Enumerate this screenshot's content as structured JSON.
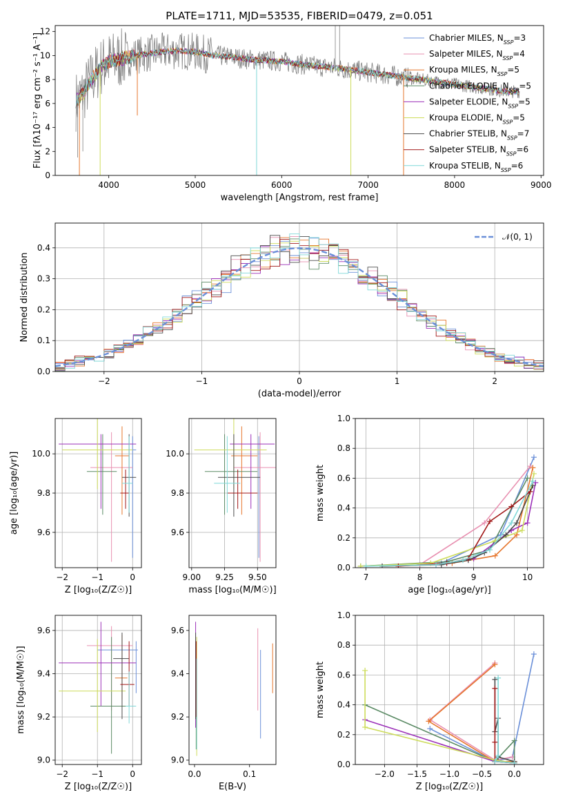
{
  "title": "PLATE=1711, MJD=53535, FIBERID=0479, z=0.051",
  "model_colors": [
    "#6a8fd8",
    "#e88fb0",
    "#e6762c",
    "#5a8a64",
    "#9b2fb8",
    "#cddc5a",
    "#4a4a4a",
    "#a01515",
    "#7fd8d8"
  ],
  "legend_labels": [
    {
      "base": "Chabrier MILES, N",
      "sub": "SSP",
      "tail": "=3"
    },
    {
      "base": "Salpeter MILES, N",
      "sub": "SSP",
      "tail": "=4"
    },
    {
      "base": "Kroupa MILES, N",
      "sub": "SSP",
      "tail": "=5"
    },
    {
      "base": "Chabrier ELODIE, N",
      "sub": "SSP",
      "tail": "=5"
    },
    {
      "base": "Salpeter ELODIE, N",
      "sub": "SSP",
      "tail": "=5"
    },
    {
      "base": "Kroupa ELODIE, N",
      "sub": "SSP",
      "tail": "=5"
    },
    {
      "base": "Chabrier STELIB, N",
      "sub": "SSP",
      "tail": "=7"
    },
    {
      "base": "Salpeter STELIB, N",
      "sub": "SSP",
      "tail": "=6"
    },
    {
      "base": "Kroupa STELIB, N",
      "sub": "SSP",
      "tail": "=6"
    }
  ],
  "chart_data": [
    {
      "id": "spectrum",
      "type": "line",
      "xlabel": "wavelength [Angstrom, rest frame]",
      "ylabel": "Flux [fλ10⁻¹⁷ erg cm⁻² s⁻¹ A⁻¹]",
      "xlim": [
        3380,
        9030
      ],
      "ylim": [
        0,
        12.5
      ],
      "xticks": [
        4000,
        5000,
        6000,
        7000,
        8000,
        9000
      ],
      "yticks": [
        0,
        2,
        4,
        6,
        8,
        10,
        12
      ],
      "continuum": [
        [
          3620,
          6.2
        ],
        [
          3700,
          6.8
        ],
        [
          3800,
          8.0
        ],
        [
          3900,
          9.0
        ],
        [
          4000,
          9.5
        ],
        [
          4200,
          9.8
        ],
        [
          4400,
          10.1
        ],
        [
          4600,
          10.3
        ],
        [
          4800,
          10.4
        ],
        [
          5000,
          10.3
        ],
        [
          5200,
          10.0
        ],
        [
          5400,
          9.9
        ],
        [
          5600,
          9.7
        ],
        [
          5800,
          9.6
        ],
        [
          6000,
          9.5
        ],
        [
          6200,
          9.3
        ],
        [
          6400,
          9.1
        ],
        [
          6600,
          9.0
        ],
        [
          6800,
          8.8
        ],
        [
          7000,
          8.6
        ],
        [
          7200,
          8.4
        ],
        [
          7400,
          8.2
        ],
        [
          7600,
          8.0
        ],
        [
          7800,
          7.8
        ],
        [
          8000,
          7.6
        ],
        [
          8200,
          7.4
        ],
        [
          8400,
          7.2
        ],
        [
          8600,
          7.0
        ],
        [
          8750,
          7.0
        ]
      ],
      "grid": false,
      "legend_loc": "upper right"
    },
    {
      "id": "residuals",
      "type": "step",
      "xlabel": "(data-model)/error",
      "ylabel": "Normed distribution",
      "xlim": [
        -2.5,
        2.5
      ],
      "ylim": [
        0,
        0.48
      ],
      "xticks": [
        -2,
        -1,
        0,
        1,
        2
      ],
      "yticks": [
        0.0,
        0.1,
        0.2,
        0.3,
        0.4
      ],
      "bin_width": 0.1,
      "reference_curve": "N(0,1)",
      "legend_label": "𝒩(0, 1)",
      "grid": true,
      "legend_loc": "upper right"
    },
    {
      "id": "age_vs_Z",
      "type": "scatter",
      "xlabel": "Z [log₁₀(Z/Z☉)]",
      "ylabel": "age  [log₁₀(age/yr)]",
      "xlim": [
        -2.2,
        0.25
      ],
      "ylim": [
        9.42,
        10.18
      ],
      "xticks": [
        -2,
        -1,
        0
      ],
      "yticks": [
        9.6,
        9.8,
        10.0
      ],
      "points": [
        {
          "x": 0.0,
          "y": 10.02,
          "xerr": [
            0.2,
            0.1
          ],
          "yerr": [
            0.55,
            0.07
          ]
        },
        {
          "x": -0.6,
          "y": 9.93,
          "xerr": [
            0.6,
            0.6
          ],
          "yerr": [
            0.48,
            0.18
          ]
        },
        {
          "x": -0.3,
          "y": 9.99,
          "xerr": [
            0.2,
            0.2
          ],
          "yerr": [
            0.3,
            0.15
          ]
        },
        {
          "x": -0.85,
          "y": 9.91,
          "xerr": [
            0.45,
            0.4
          ],
          "yerr": [
            0.22,
            0.19
          ]
        },
        {
          "x": -0.9,
          "y": 10.05,
          "xerr": [
            1.2,
            1.0
          ],
          "yerr": [
            0.33,
            0.05
          ]
        },
        {
          "x": -1.0,
          "y": 10.02,
          "xerr": [
            1.0,
            1.0
          ],
          "yerr": [
            0.2,
            0.16
          ]
        },
        {
          "x": -0.1,
          "y": 9.88,
          "xerr": [
            0.2,
            0.2
          ],
          "yerr": [
            0.2,
            0.22
          ]
        },
        {
          "x": -0.2,
          "y": 9.8,
          "xerr": [
            0.15,
            0.1
          ],
          "yerr": [
            0.08,
            0.12
          ]
        },
        {
          "x": -0.1,
          "y": 9.85,
          "xerr": [
            0.2,
            0.1
          ],
          "yerr": [
            0.15,
            0.24
          ]
        }
      ],
      "grid": true
    },
    {
      "id": "age_vs_mass",
      "type": "scatter",
      "xlabel": "mass [log₁₀(M/M☉)]",
      "ylabel": "",
      "xlim": [
        8.98,
        9.64
      ],
      "ylim": [
        9.42,
        10.18
      ],
      "xticks": [
        9.0,
        9.25,
        9.5
      ],
      "yticks": [
        9.6,
        9.8,
        10.0
      ],
      "points": [
        {
          "x": 9.51,
          "y": 10.02,
          "xerr": [
            0.2,
            0.04
          ],
          "yerr": [
            0.55,
            0.07
          ]
        },
        {
          "x": 9.52,
          "y": 9.93,
          "xerr": [
            0.2,
            0.12
          ],
          "yerr": [
            0.48,
            0.18
          ]
        },
        {
          "x": 9.38,
          "y": 9.99,
          "xerr": [
            0.08,
            0.12
          ],
          "yerr": [
            0.3,
            0.15
          ]
        },
        {
          "x": 9.25,
          "y": 9.91,
          "xerr": [
            0.15,
            0.25
          ],
          "yerr": [
            0.22,
            0.19
          ]
        },
        {
          "x": 9.45,
          "y": 10.05,
          "xerr": [
            0.16,
            0.18
          ],
          "yerr": [
            0.33,
            0.05
          ]
        },
        {
          "x": 9.32,
          "y": 10.02,
          "xerr": [
            0.3,
            0.25
          ],
          "yerr": [
            0.2,
            0.16
          ]
        },
        {
          "x": 9.32,
          "y": 9.88,
          "xerr": [
            0.12,
            0.2
          ],
          "yerr": [
            0.2,
            0.22
          ]
        },
        {
          "x": 9.35,
          "y": 9.8,
          "xerr": [
            0.08,
            0.15
          ],
          "yerr": [
            0.08,
            0.12
          ]
        },
        {
          "x": 9.27,
          "y": 9.85,
          "xerr": [
            0.1,
            0.1
          ],
          "yerr": [
            0.15,
            0.24
          ]
        }
      ],
      "grid": true
    },
    {
      "id": "weight_vs_age",
      "type": "line",
      "xlabel": "age  [log₁₀(age/yr)]",
      "ylabel": "mass weight",
      "xlim": [
        6.8,
        10.3
      ],
      "ylim": [
        0,
        1
      ],
      "xticks": [
        7,
        8,
        9,
        10
      ],
      "yticks": [
        0.0,
        0.2,
        0.4,
        0.6,
        0.8,
        1.0
      ],
      "series": [
        {
          "x": [
            8.4,
            9.5,
            10.12
          ],
          "y": [
            0.03,
            0.22,
            0.74
          ]
        },
        {
          "x": [
            8.0,
            9.2,
            10.05
          ],
          "y": [
            0.02,
            0.3,
            0.68
          ]
        },
        {
          "x": [
            8.6,
            9.4,
            9.8,
            10.1
          ],
          "y": [
            0.03,
            0.08,
            0.22,
            0.67
          ]
        },
        {
          "x": [
            6.9,
            8.5,
            9.3,
            10.0
          ],
          "y": [
            0.01,
            0.04,
            0.12,
            0.6
          ]
        },
        {
          "x": [
            8.3,
            9.0,
            9.7,
            10.0,
            10.15
          ],
          "y": [
            0.02,
            0.06,
            0.25,
            0.3,
            0.57
          ]
        },
        {
          "x": [
            6.9,
            8.2,
            9.4,
            9.9,
            10.12
          ],
          "y": [
            0.01,
            0.03,
            0.18,
            0.25,
            0.63
          ]
        },
        {
          "x": [
            7.3,
            8.4,
            8.9,
            9.2,
            9.6,
            9.8,
            10.1
          ],
          "y": [
            0.01,
            0.02,
            0.05,
            0.1,
            0.22,
            0.3,
            0.55
          ]
        },
        {
          "x": [
            7.6,
            8.5,
            8.9,
            9.3,
            9.7,
            10.05
          ],
          "y": [
            0.01,
            0.03,
            0.06,
            0.31,
            0.41,
            0.51
          ]
        },
        {
          "x": [
            7.0,
            8.3,
            8.8,
            9.3,
            9.7,
            10.1
          ],
          "y": [
            0.01,
            0.02,
            0.05,
            0.12,
            0.3,
            0.58
          ]
        }
      ],
      "grid": true
    },
    {
      "id": "mass_vs_Z",
      "type": "scatter",
      "xlabel": "Z [log₁₀(Z/Z☉)]",
      "ylabel": "mass [log₁₀(M/M☉)]",
      "xlim": [
        -2.2,
        0.25
      ],
      "ylim": [
        8.98,
        9.67
      ],
      "xticks": [
        -2,
        -1,
        0
      ],
      "yticks": [
        9.0,
        9.2,
        9.4,
        9.6
      ],
      "points": [
        {
          "x": 0.1,
          "y": 9.51,
          "xerr": [
            1.1,
            0.05
          ],
          "yerr": [
            0.2,
            0.04
          ]
        },
        {
          "x": -0.6,
          "y": 9.53,
          "xerr": [
            0.7,
            0.6
          ],
          "yerr": [
            0.3,
            0.09
          ]
        },
        {
          "x": -0.3,
          "y": 9.38,
          "xerr": [
            0.2,
            0.15
          ],
          "yerr": [
            0.1,
            0.2
          ]
        },
        {
          "x": -0.6,
          "y": 9.25,
          "xerr": [
            0.6,
            0.5
          ],
          "yerr": [
            0.22,
            0.32
          ]
        },
        {
          "x": -0.9,
          "y": 9.45,
          "xerr": [
            1.2,
            1.0
          ],
          "yerr": [
            0.2,
            0.19
          ]
        },
        {
          "x": -1.0,
          "y": 9.32,
          "xerr": [
            1.1,
            0.8
          ],
          "yerr": [
            0.19,
            0.24
          ]
        },
        {
          "x": -0.3,
          "y": 9.47,
          "xerr": [
            0.25,
            0.2
          ],
          "yerr": [
            0.28,
            0.12
          ]
        },
        {
          "x": -0.1,
          "y": 9.35,
          "xerr": [
            0.25,
            0.15
          ],
          "yerr": [
            0.1,
            0.2
          ]
        },
        {
          "x": -0.1,
          "y": 9.25,
          "xerr": [
            0.1,
            0.2
          ],
          "yerr": [
            0.08,
            0.16
          ]
        }
      ],
      "grid": true
    },
    {
      "id": "mass_vs_ebv",
      "type": "scatter",
      "xlabel": "E(B-V)",
      "ylabel": "",
      "xlim": [
        -0.01,
        0.148
      ],
      "ylim": [
        8.98,
        9.67
      ],
      "xticks": [
        0.0,
        0.1
      ],
      "yticks": [
        9.0,
        9.2,
        9.4,
        9.6
      ],
      "points": [
        {
          "x": 0.12,
          "y": 9.3,
          "xerr": [
            0,
            0
          ],
          "yerr": [
            0.2,
            0.21
          ]
        },
        {
          "x": 0.115,
          "y": 9.42,
          "xerr": [
            0,
            0
          ],
          "yerr": [
            0.19,
            0.19
          ]
        },
        {
          "x": 0.142,
          "y": 9.42,
          "xerr": [
            0,
            0
          ],
          "yerr": [
            0.11,
            0.12
          ]
        },
        {
          "x": 0.003,
          "y": 9.25,
          "xerr": [
            0,
            0
          ],
          "yerr": [
            0.2,
            0.3
          ]
        },
        {
          "x": 0.002,
          "y": 9.45,
          "xerr": [
            0,
            0
          ],
          "yerr": [
            0.3,
            0.19
          ]
        },
        {
          "x": 0.004,
          "y": 9.32,
          "xerr": [
            0,
            0
          ],
          "yerr": [
            0.3,
            0.25
          ]
        },
        {
          "x": 0.002,
          "y": 9.47,
          "xerr": [
            0,
            0
          ],
          "yerr": [
            0.28,
            0.12
          ]
        },
        {
          "x": 0.003,
          "y": 9.35,
          "xerr": [
            0,
            0
          ],
          "yerr": [
            0.15,
            0.2
          ]
        },
        {
          "x": 0.004,
          "y": 9.25,
          "xerr": [
            0,
            0
          ],
          "yerr": [
            0.2,
            0.22
          ]
        }
      ],
      "grid": false
    },
    {
      "id": "weight_vs_Z",
      "type": "line",
      "xlabel": "Z [log₁₀(Z/Z☉)]",
      "ylabel": "mass weight",
      "xlim": [
        -2.45,
        0.45
      ],
      "ylim": [
        0,
        1
      ],
      "xticks": [
        -2.0,
        -1.5,
        -1.0,
        -0.5,
        0.0
      ],
      "yticks": [
        0.0,
        0.2,
        0.4,
        0.6,
        0.8,
        1.0
      ],
      "series": [
        {
          "x": [
            0.3,
            -0.03,
            -0.3,
            -1.3
          ],
          "y": [
            0.74,
            0.05,
            0.02,
            0.24
          ]
        },
        {
          "x": [
            -0.3,
            -1.3,
            -0.3,
            -0.03
          ],
          "y": [
            0.68,
            0.3,
            0.03,
            0.05
          ]
        },
        {
          "x": [
            -0.3,
            -1.32,
            -0.3,
            0.0
          ],
          "y": [
            0.67,
            0.29,
            0.02,
            0.02
          ]
        },
        {
          "x": [
            -2.3,
            -0.3,
            0.0,
            0.0
          ],
          "y": [
            0.4,
            0.02,
            0.16,
            0.01
          ]
        },
        {
          "x": [
            -2.3,
            -0.3,
            0.0
          ],
          "y": [
            0.3,
            0.02,
            0.01
          ]
        },
        {
          "x": [
            -2.3,
            -2.3,
            -0.3,
            0.0
          ],
          "y": [
            0.63,
            0.25,
            0.03,
            0.01
          ]
        },
        {
          "x": [
            -0.3,
            -0.3,
            -0.25,
            -0.25,
            0.0
          ],
          "y": [
            0.57,
            0.22,
            0.31,
            0.05,
            0.02
          ]
        },
        {
          "x": [
            -0.3,
            -0.3,
            -0.3,
            0.0
          ],
          "y": [
            0.51,
            0.15,
            0.02,
            0.01
          ]
        },
        {
          "x": [
            -0.25,
            -0.25,
            -0.3,
            0.0
          ],
          "y": [
            0.58,
            0.06,
            0.02,
            0.01
          ]
        }
      ],
      "grid": true
    }
  ]
}
